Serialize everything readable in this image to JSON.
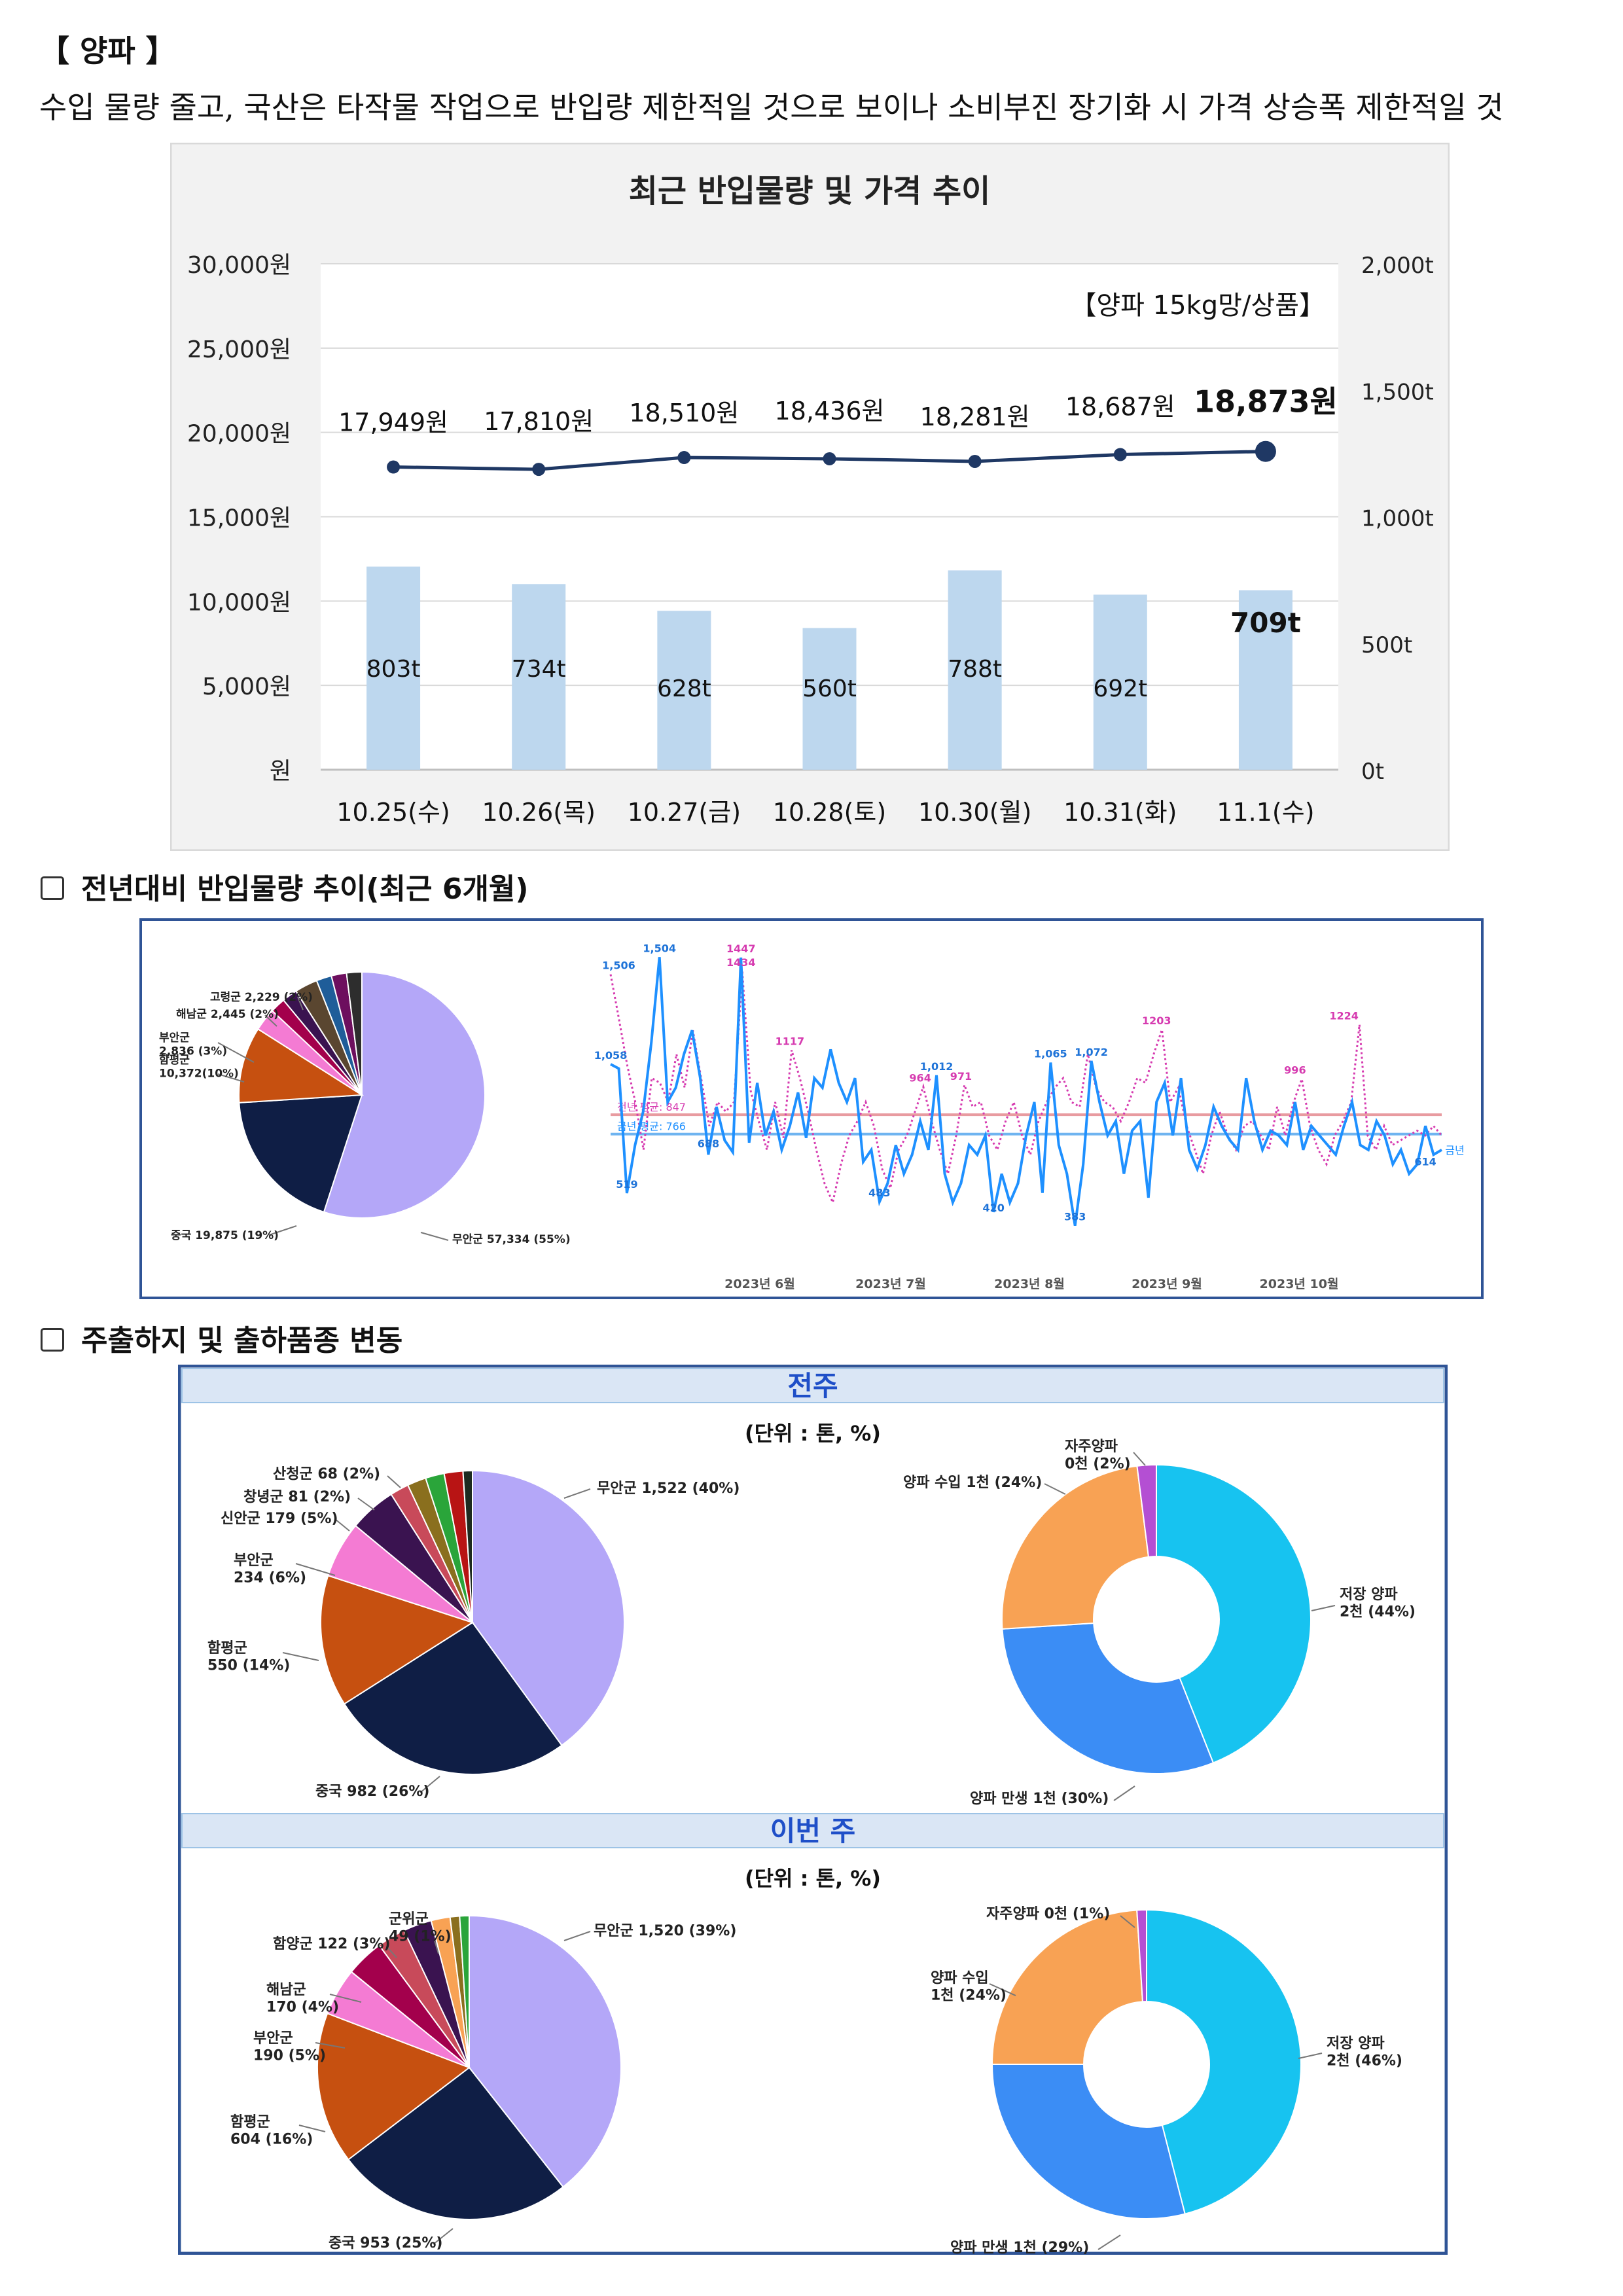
{
  "heading": "【 양파 】",
  "summary": "수입 물량 줄고, 국산은 타작물 작업으로 반입량 제한적일 것으로 보이나 소비부진 장기화 시 가격 상승폭 제한적일 것",
  "sections": {
    "yoy": "전년대비  반입물량  추이(최근  6개월)",
    "origin": "주출하지  및  출하품종  변동"
  },
  "chart_data": [
    {
      "type": "bar+line",
      "title": "최근 반입물량 및 가격 추이",
      "note": "【양파  15kg망/상품】",
      "categories": [
        "10.25(수)",
        "10.26(목)",
        "10.27(금)",
        "10.28(토)",
        "10.30(월)",
        "10.31(화)",
        "11.1(수)"
      ],
      "bars": {
        "values": [
          803,
          734,
          628,
          560,
          788,
          692,
          709
        ],
        "labels": [
          "803t",
          "734t",
          "628t",
          "560t",
          "788t",
          "692t",
          "709t"
        ],
        "ylim": [
          0,
          2000
        ],
        "color": "#bdd7ee"
      },
      "line": {
        "values": [
          17949,
          17810,
          18510,
          18436,
          18281,
          18687,
          18873
        ],
        "labels": [
          "17,949원",
          "17,810원",
          "18,510원",
          "18,436원",
          "18,281원",
          "18,687원",
          "18,873원"
        ],
        "ylim": [
          0,
          30000
        ],
        "color": "#1f3864"
      },
      "left_ticks": [
        "30,000원",
        "25,000원",
        "20,000원",
        "15,000원",
        "10,000원",
        "5,000원",
        "원"
      ],
      "right_ticks": [
        "2,000t",
        "1,500t",
        "1,000t",
        "500t",
        "0t"
      ]
    },
    {
      "type": "pie",
      "slices": [
        {
          "label": "무안군 57,334 (55%)",
          "value": 55,
          "color": "#b4a7f8"
        },
        {
          "label": "중국 19,875 (19%)",
          "value": 19,
          "color": "#0f1e45"
        },
        {
          "label": "함평군 10,372(10%)",
          "value": 10,
          "color": "#c65010"
        },
        {
          "label": "부안군 2,836 (3%)",
          "value": 3,
          "color": "#f47bd3"
        },
        {
          "label": "해남군 2,445 (2%)",
          "value": 2,
          "color": "#a3004c"
        },
        {
          "label": "고령군 2,229 (2%)",
          "value": 2,
          "color": "#3a1350"
        },
        {
          "label": "",
          "value": 3,
          "color": "#5a4630"
        },
        {
          "label": "",
          "value": 2,
          "color": "#1f5d99"
        },
        {
          "label": "",
          "value": 2,
          "color": "#6d0f5e"
        },
        {
          "label": "",
          "value": 2,
          "color": "#2d2d2d"
        }
      ]
    },
    {
      "type": "line",
      "series": [
        {
          "name": "금년",
          "color": "#1e90ff",
          "values": [
            1058,
            1040,
            519,
            720,
            860,
            1150,
            1506,
            900,
            960,
            1100,
            1200,
            1000,
            680,
            880,
            740,
            690,
            1504,
            730,
            980,
            760,
            860,
            700,
            800,
            940,
            750,
            1000,
            960,
            1120,
            980,
            900,
            1000,
            650,
            700,
            483,
            560,
            720,
            600,
            680,
            820,
            700,
            1012,
            600,
            480,
            560,
            720,
            680,
            760,
            440,
            600,
            480,
            560,
            760,
            900,
            520,
            1065,
            720,
            600,
            383,
            640,
            1072,
            900,
            760,
            820,
            600,
            780,
            820,
            500,
            900,
            980,
            760,
            1000,
            700,
            620,
            720,
            880,
            800,
            740,
            700,
            1000,
            820,
            700,
            780,
            760,
            720,
            900,
            700,
            800,
            760,
            720,
            680,
            800,
            900,
            720,
            700,
            820,
            760,
            640,
            700,
            600,
            640,
            800,
            680,
            700
          ]
        },
        {
          "name": "전년",
          "color": "#d63bb0",
          "values": [
            1434,
            1250,
            1058,
            900,
            700,
            1000,
            980,
            900,
            1100,
            960,
            1200,
            1000,
            800,
            900,
            860,
            900,
            1447,
            950,
            820,
            700,
            900,
            750,
            1117,
            1000,
            860,
            700,
            560,
            480,
            640,
            760,
            820,
            900,
            800,
            620,
            540,
            700,
            760,
            860,
            964,
            820,
            700,
            600,
            760,
            971,
            880,
            900,
            760,
            700,
            820,
            900,
            760,
            680,
            820,
            900,
            960,
            1000,
            900,
            880,
            1100,
            960,
            900,
            880,
            820,
            900,
            1000,
            980,
            1100,
            1203,
            900,
            960,
            800,
            700,
            600,
            760,
            860,
            760,
            700,
            800,
            820,
            760,
            700,
            880,
            760,
            900,
            996,
            800,
            700,
            640,
            760,
            820,
            900,
            1224,
            760,
            700,
            800,
            720,
            740,
            760,
            780,
            760,
            800,
            760
          ]
        }
      ],
      "hlines": [
        {
          "label": "전년 평균: 847",
          "value": 847,
          "color": "#e89ba0"
        },
        {
          "label": "금년 평균: 766",
          "value": 766,
          "color": "#6fb4f0"
        }
      ],
      "annotations": [
        "1,506",
        "1,504",
        "1434",
        "1447",
        "1,058",
        "519",
        "688",
        "1117",
        "483",
        "1,012",
        "964",
        "971",
        "1,065",
        "1,072",
        "383",
        "420",
        "1203",
        "996",
        "1224",
        "614"
      ],
      "ylim": [
        300,
        1600
      ],
      "x_ticks": [
        "2023년 6월",
        "2023년 7월",
        "2023년 8월",
        "2023년 9월",
        "2023년 10월"
      ],
      "end_label": "금년"
    },
    {
      "type": "pie",
      "group": "전주",
      "unit": "(단위 : 톤, %)",
      "slices": [
        {
          "label": "무안군 1,522 (40%)",
          "value": 40,
          "color": "#b4a7f8"
        },
        {
          "label": "중국 982 (26%)",
          "value": 26,
          "color": "#0f1e45"
        },
        {
          "label": "함평군 550 (14%)",
          "value": 14,
          "color": "#c65010"
        },
        {
          "label": "부안군 234 (6%)",
          "value": 6,
          "color": "#f47bd3"
        },
        {
          "label": "신안군 179 (5%)",
          "value": 5,
          "color": "#3a1350"
        },
        {
          "label": "창녕군 81 (2%)",
          "value": 2,
          "color": "#c84a5a"
        },
        {
          "label": "산청군 68 (2%)",
          "value": 2,
          "color": "#8a6f1e"
        },
        {
          "label": "",
          "value": 2,
          "color": "#2aa53a"
        },
        {
          "label": "",
          "value": 2,
          "color": "#b81414"
        },
        {
          "label": "",
          "value": 1,
          "color": "#1d2a20"
        }
      ]
    },
    {
      "type": "donut",
      "group": "전주",
      "slices": [
        {
          "label": "저장 양파 2천 (44%)",
          "value": 44,
          "color": "#17c3f0"
        },
        {
          "label": "양파 만생 1천 (30%)",
          "value": 30,
          "color": "#3b8df5"
        },
        {
          "label": "양파 수입 1천 (24%)",
          "value": 24,
          "color": "#f8a254"
        },
        {
          "label": "자주양파 0천 (2%)",
          "value": 2,
          "color": "#b44fd3"
        }
      ]
    },
    {
      "type": "pie",
      "group": "이번 주",
      "unit": "(단위 : 톤, %)",
      "slices": [
        {
          "label": "무안군 1,520 (39%)",
          "value": 39,
          "color": "#b4a7f8"
        },
        {
          "label": "중국 953 (25%)",
          "value": 25,
          "color": "#0f1e45"
        },
        {
          "label": "함평군 604 (16%)",
          "value": 16,
          "color": "#c65010"
        },
        {
          "label": "부안군 190 (5%)",
          "value": 5,
          "color": "#f47bd3"
        },
        {
          "label": "해남군 170 (4%)",
          "value": 4,
          "color": "#a3004c"
        },
        {
          "label": "",
          "value": 3,
          "color": "#c84a5a"
        },
        {
          "label": "함양군 122 (3%)",
          "value": 3,
          "color": "#3a1350"
        },
        {
          "label": "",
          "value": 2,
          "color": "#f8a254"
        },
        {
          "label": "군위군 49 (1%)",
          "value": 1,
          "color": "#8a6f1e"
        },
        {
          "label": "",
          "value": 1,
          "color": "#2aa53a"
        }
      ]
    },
    {
      "type": "donut",
      "group": "이번 주",
      "slices": [
        {
          "label": "저장 양파 2천 (46%)",
          "value": 46,
          "color": "#17c3f0"
        },
        {
          "label": "양파 만생 1천 (29%)",
          "value": 29,
          "color": "#3b8df5"
        },
        {
          "label": "양파 수입 1천 (24%)",
          "value": 24,
          "color": "#f8a254"
        },
        {
          "label": "자주양파 0천 (1%)",
          "value": 1,
          "color": "#b44fd3"
        }
      ]
    }
  ]
}
